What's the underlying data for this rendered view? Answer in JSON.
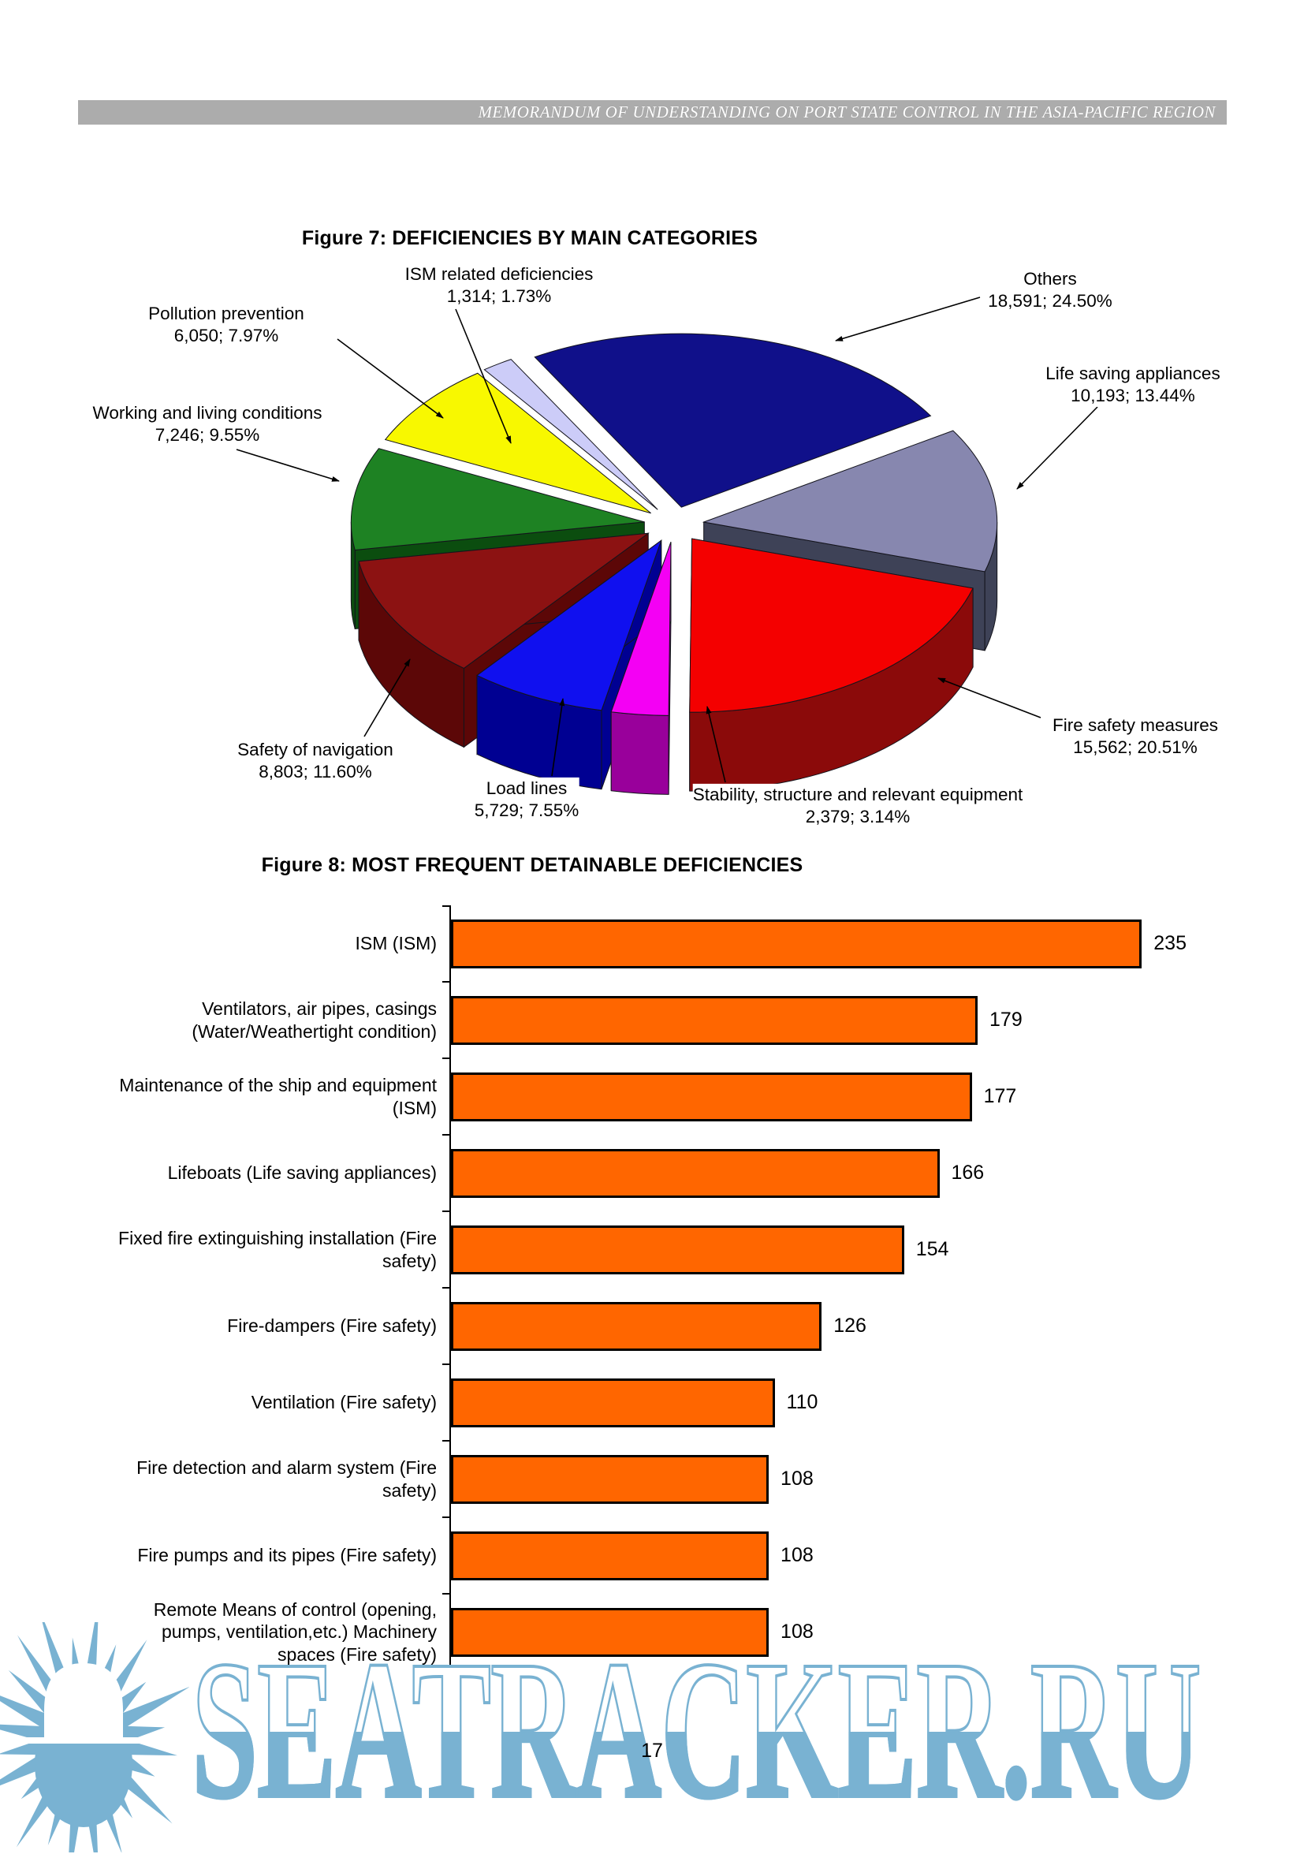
{
  "header": {
    "title": "MEMORANDUM OF UNDERSTANDING ON PORT STATE CONTROL IN THE ASIA-PACIFIC REGION"
  },
  "page_number": "17",
  "watermark": {
    "text": "SEATRACKER.RU",
    "color": "#79b2d2"
  },
  "chart_data": [
    {
      "type": "pie",
      "title": "Figure 7: DEFICIENCIES BY MAIN CATEGORIES",
      "style": "3d-exploded",
      "start_angle_deg": -30,
      "order": "clockwise",
      "slices": [
        {
          "label": "Others",
          "value": 18591,
          "pct": 24.5,
          "value_text": "18,591; 24.50%",
          "color": "#10108a",
          "side": "#0a0a55"
        },
        {
          "label": "Life saving appliances",
          "value": 10193,
          "pct": 13.44,
          "value_text": "10,193; 13.44%",
          "color": "#8787af",
          "side": "#3e4257"
        },
        {
          "label": "Fire safety measures",
          "value": 15562,
          "pct": 20.51,
          "value_text": "15,562; 20.51%",
          "color": "#f40000",
          "side": "#8b0a0a"
        },
        {
          "label": "Stability, structure and relevant equipment",
          "value": 2379,
          "pct": 3.14,
          "value_text": "2,379; 3.14%",
          "color": "#f400f4",
          "side": "#99009b"
        },
        {
          "label": "Load lines",
          "value": 5729,
          "pct": 7.55,
          "value_text": "5,729; 7.55%",
          "color": "#1010ef",
          "side": "#000092"
        },
        {
          "label": "Safety of navigation",
          "value": 8803,
          "pct": 11.6,
          "value_text": "8,803; 11.60%",
          "color": "#8c1212",
          "side": "#5c0707"
        },
        {
          "label": "Working and living conditions",
          "value": 7246,
          "pct": 9.55,
          "value_text": "7,246; 9.55%",
          "color": "#1e8223",
          "side": "#0b4d0f"
        },
        {
          "label": "Pollution prevention",
          "value": 6050,
          "pct": 7.97,
          "value_text": "6,050; 7.97%",
          "color": "#f8f800",
          "side": "#8b8b00"
        },
        {
          "label": "ISM related deficiencies",
          "value": 1314,
          "pct": 1.73,
          "value_text": "1,314; 1.73%",
          "color": "#ccccf8",
          "side": "#9898c8"
        }
      ]
    },
    {
      "type": "bar",
      "title": "Figure 8: MOST FREQUENT DETAINABLE DEFICIENCIES",
      "orientation": "horizontal",
      "bar_color": "#ff6600",
      "xlim": [
        0,
        250
      ],
      "grid": false,
      "categories": [
        "ISM (ISM)",
        "Ventilators, air pipes, casings (Water/Weathertight condition)",
        "Maintenance of the ship and equipment (ISM)",
        "Lifeboats (Life saving appliances)",
        "Fixed fire extinguishing installation (Fire safety)",
        "Fire-dampers (Fire safety)",
        "Ventilation (Fire safety)",
        "Fire detection and alarm system (Fire safety)",
        "Fire pumps and its pipes (Fire safety)",
        "Remote Means of control (opening, pumps, ventilation,etc.) Machinery spaces (Fire safety)"
      ],
      "values": [
        235,
        179,
        177,
        166,
        154,
        126,
        110,
        108,
        108,
        108
      ]
    }
  ]
}
